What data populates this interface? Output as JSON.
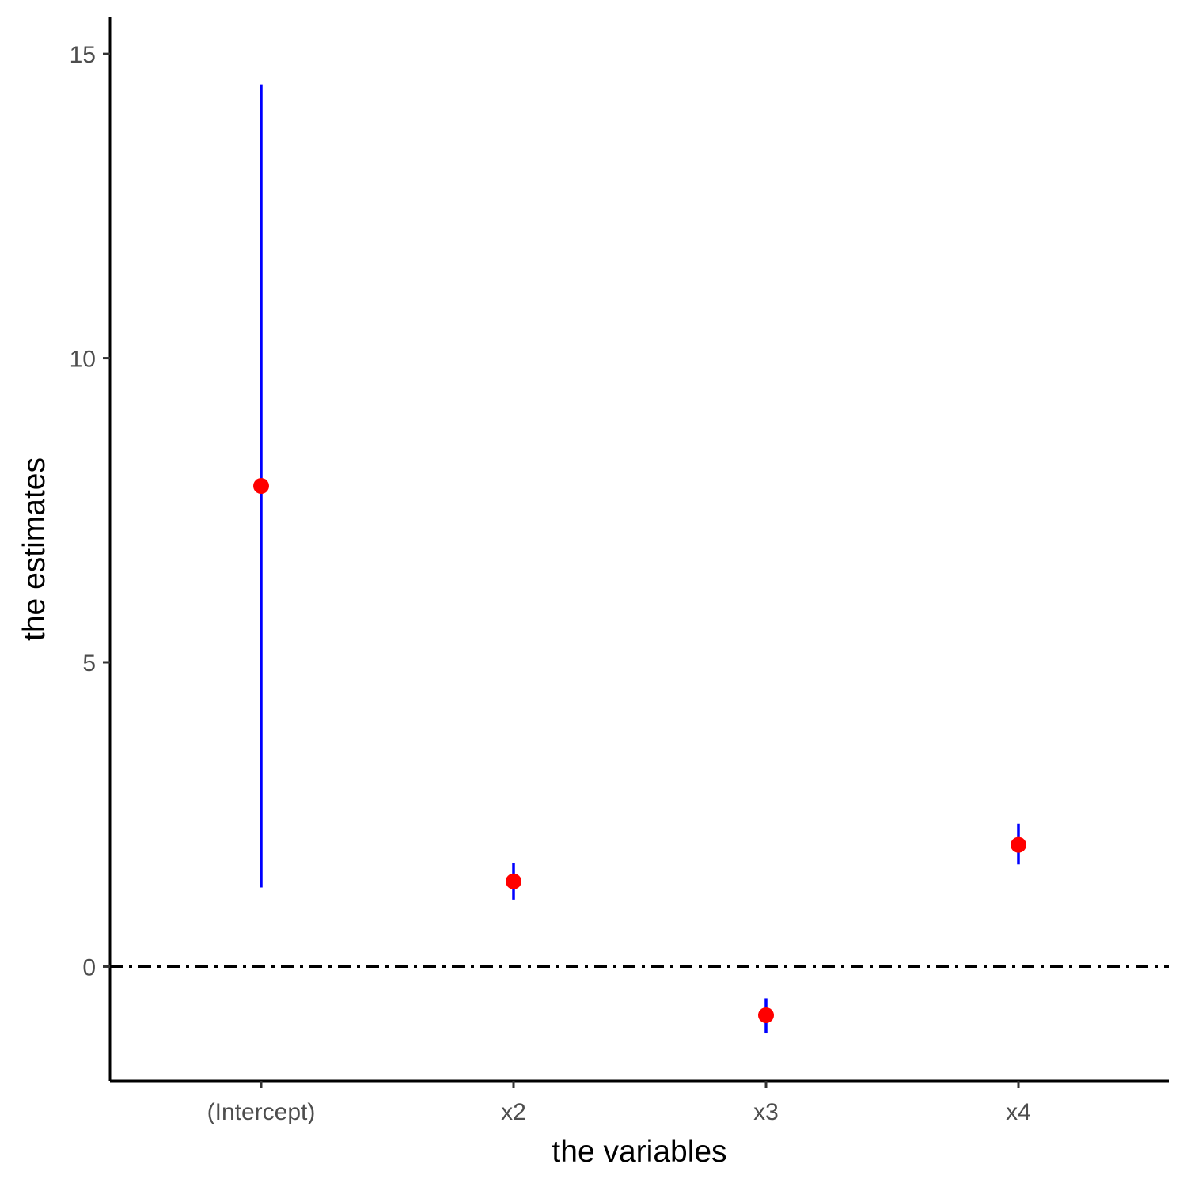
{
  "chart_data": {
    "type": "scatter",
    "subtype": "point-range (estimates with intervals)",
    "xlabel": "the variables",
    "ylabel": "the estimates",
    "categories": [
      "(Intercept)",
      "x2",
      "x3",
      "x4"
    ],
    "estimates": [
      7.9,
      1.4,
      -0.8,
      2.0
    ],
    "lower": [
      1.3,
      1.1,
      -1.1,
      1.68
    ],
    "upper": [
      14.5,
      1.7,
      -0.52,
      2.35
    ],
    "yticks": [
      0,
      5,
      10,
      15
    ],
    "ylim": [
      -1.88,
      15.6
    ],
    "reference_line": {
      "y": 0,
      "style": "dot-dash"
    },
    "grid": false,
    "legend": "none",
    "colors": {
      "point": "#ff0000",
      "interval": "#0000ff",
      "axis": "#000000",
      "reference_line": "#000000"
    }
  }
}
